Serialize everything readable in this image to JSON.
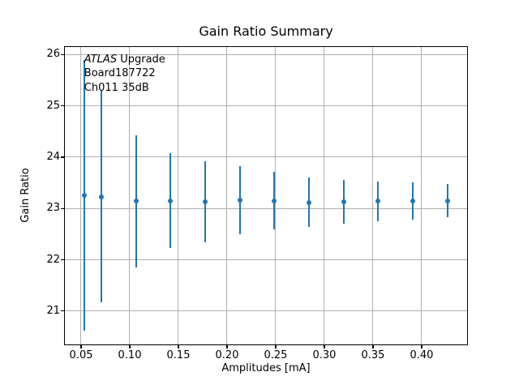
{
  "chart_data": {
    "type": "errorbar",
    "title": "Gain Ratio Summary",
    "xlabel": "Amplitudes [mA]",
    "ylabel": "Gain Ratio",
    "x": [
      0.0533,
      0.0711,
      0.1067,
      0.1422,
      0.1778,
      0.2133,
      0.2489,
      0.2844,
      0.32,
      0.3556,
      0.3911,
      0.4267
    ],
    "y": [
      23.25,
      23.23,
      23.14,
      23.15,
      23.13,
      23.16,
      23.15,
      23.12,
      23.13,
      23.14,
      23.14,
      23.15
    ],
    "yerr": [
      2.64,
      2.06,
      1.29,
      0.92,
      0.79,
      0.67,
      0.56,
      0.48,
      0.43,
      0.39,
      0.36,
      0.33
    ],
    "xlim": [
      0.0333,
      0.4467
    ],
    "ylim": [
      20.35,
      26.15
    ],
    "xticks": {
      "values": [
        0.05,
        0.1,
        0.15,
        0.2,
        0.25,
        0.3,
        0.35,
        0.4
      ],
      "labels": [
        "0.05",
        "0.10",
        "0.15",
        "0.20",
        "0.25",
        "0.30",
        "0.35",
        "0.40"
      ]
    },
    "yticks": {
      "values": [
        21,
        22,
        23,
        24,
        25,
        26
      ],
      "labels": [
        "21",
        "22",
        "23",
        "24",
        "25",
        "26"
      ]
    },
    "grid": true,
    "legend": "none",
    "marker": "point",
    "series_color": "#1f77b4",
    "grid_color": "#b0b0b0",
    "annotation": {
      "line1_italic": "ATLAS",
      "line1_rest": " Upgrade",
      "line2": "Board187722",
      "line3": "Ch011 35dB"
    }
  }
}
